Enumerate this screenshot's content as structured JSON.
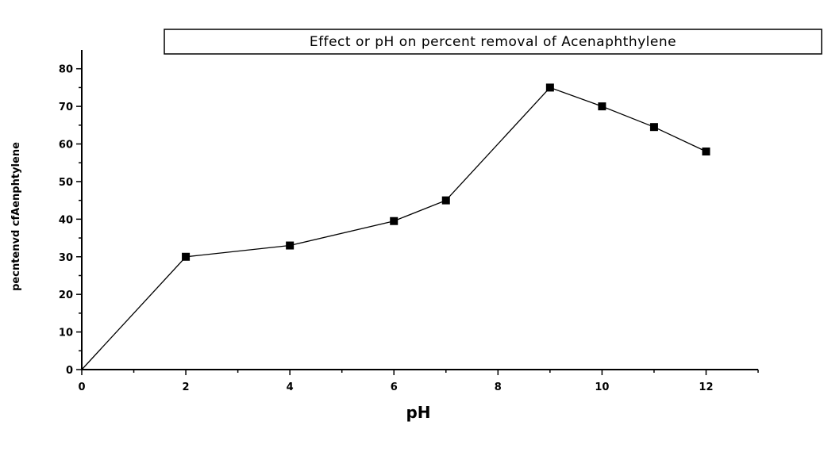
{
  "chart_data": {
    "type": "line",
    "title": "Effect or pH on percent removal of Acenaphthylene",
    "xlabel": "pH",
    "ylabel": "pecntenvd cfAenphtylene",
    "xlim": [
      0,
      13
    ],
    "ylim": [
      0,
      85
    ],
    "x_ticks": [
      0,
      2,
      4,
      6,
      8,
      10,
      12
    ],
    "y_ticks": [
      0,
      10,
      20,
      30,
      40,
      50,
      60,
      70,
      80
    ],
    "grid": false,
    "legend": "none",
    "series": [
      {
        "x": [
          0,
          2,
          4,
          6,
          7,
          9,
          10,
          11,
          12
        ],
        "y": [
          0,
          30,
          33,
          39.5,
          45,
          75,
          70,
          64.5,
          58
        ],
        "color": "#000000",
        "marker": "square"
      }
    ]
  }
}
